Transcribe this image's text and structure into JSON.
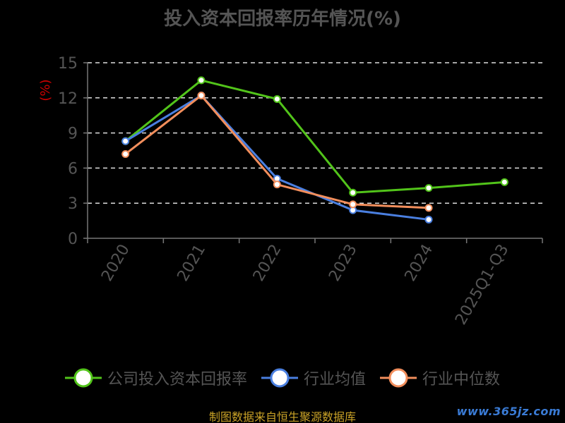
{
  "title": "投入资本回报率历年情况(%)",
  "source": "制图数据来自恒生聚源数据库",
  "watermark": "www.365jz.com",
  "colors": {
    "background": "#000000",
    "text": "#555555",
    "unit": "#cc0000",
    "grid": "#dddddd",
    "axis": "#777777",
    "source": "#c9a227",
    "watermark": "#3a7bd5"
  },
  "chart_data": {
    "type": "line",
    "title": "投入资本回报率历年情况(%)",
    "ylabel": "(%)",
    "xlabel": "",
    "ylim": [
      0,
      15
    ],
    "yticks": [
      0,
      3,
      6,
      9,
      12,
      15
    ],
    "categories": [
      "2020",
      "2021",
      "2022",
      "2023",
      "2024",
      "2025Q1-Q3"
    ],
    "grid": true,
    "legend_position": "bottom",
    "series": [
      {
        "name": "公司投入资本回报率",
        "color": "#52c41a",
        "values": [
          8.3,
          13.5,
          11.9,
          3.9,
          4.3,
          4.8
        ]
      },
      {
        "name": "行业均值",
        "color": "#4a7fe0",
        "values": [
          8.3,
          12.2,
          5.1,
          2.4,
          1.6,
          null
        ]
      },
      {
        "name": "行业中位数",
        "color": "#f28e5c",
        "values": [
          7.2,
          12.2,
          4.6,
          2.9,
          2.6,
          null
        ]
      }
    ]
  }
}
